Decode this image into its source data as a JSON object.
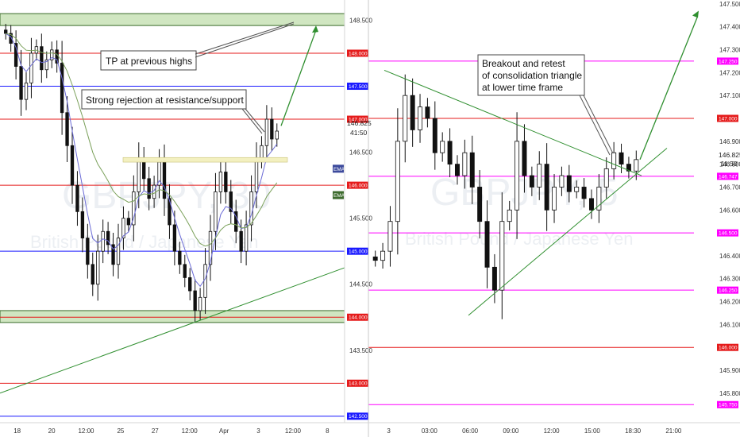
{
  "colors": {
    "red_line": "#e51b1b",
    "blue_line": "#1a1aff",
    "magenta_line": "#ff00ff",
    "green_zone": "#a9d18e",
    "green_trend": "#2f8f2f",
    "ema_fast": "#6b6bd6",
    "ema_slow": "#7aa05a"
  },
  "chart_data": [
    {
      "type": "candlestick",
      "symbol_watermark": "GBPJPY, 30",
      "description_watermark": "British Pound / Japanese Yen",
      "x_ticks": [
        "18",
        "20",
        "12:00",
        "25",
        "27",
        "12:00",
        "Apr",
        "3",
        "12:00",
        "8"
      ],
      "y_ticks": [
        "148.500",
        "148.000",
        "147.500",
        "147.000",
        "146.500",
        "146.000",
        "145.500",
        "145.000",
        "144.500",
        "144.000",
        "143.500",
        "143.000",
        "142.500"
      ],
      "ylim": [
        142.45,
        148.65
      ],
      "last_price": "146.825",
      "countdown": "41:50",
      "levels": [
        {
          "price": 148.0,
          "label": "148.000",
          "color": "red"
        },
        {
          "price": 147.5,
          "label": "147.500",
          "color": "blue"
        },
        {
          "price": 147.0,
          "label": "147.000",
          "color": "red"
        },
        {
          "price": 146.0,
          "label": "146.000",
          "color": "red"
        },
        {
          "price": 145.0,
          "label": "145.000",
          "color": "blue"
        },
        {
          "price": 144.0,
          "label": "144.000",
          "color": "red"
        },
        {
          "price": 143.0,
          "label": "143.000",
          "color": "red"
        },
        {
          "price": 142.5,
          "label": "142.500",
          "color": "blue"
        }
      ],
      "indicator_tags": [
        "EMA",
        "EMA"
      ],
      "zones": [
        {
          "from": 148.42,
          "to": 148.6
        },
        {
          "from": 143.92,
          "to": 144.1
        }
      ],
      "annotations": [
        "TP at previous highs",
        "Strong rejection at resistance/support"
      ],
      "series_close": [
        148.3,
        148.15,
        147.8,
        147.3,
        147.55,
        148.0,
        148.1,
        147.75,
        147.9,
        148.05,
        147.85,
        147.1,
        146.6,
        146.0,
        145.6,
        145.2,
        144.8,
        144.5,
        145.0,
        145.3,
        145.1,
        144.8,
        145.2,
        145.5,
        145.4,
        145.9,
        146.4,
        146.1,
        145.8,
        146.0,
        146.35,
        145.8,
        145.4,
        145.0,
        144.8,
        144.6,
        144.4,
        144.1,
        144.3,
        144.8,
        145.3,
        145.9,
        146.2,
        145.9,
        145.6,
        145.3,
        145.0,
        145.4,
        145.9,
        146.4,
        146.6,
        147.0,
        146.7,
        146.82
      ]
    },
    {
      "type": "candlestick",
      "symbol_watermark": "GBPJPY, 5",
      "description_watermark": "British Pound / Japanese Yen",
      "x_ticks": [
        "3",
        "03:00",
        "06:00",
        "09:00",
        "12:00",
        "15:00",
        "18:30",
        "21:00"
      ],
      "y_ticks": [
        "147.500",
        "147.400",
        "147.300",
        "147.200",
        "147.100",
        "147.000",
        "146.900",
        "146.800",
        "146.700",
        "146.600",
        "146.500",
        "146.400",
        "146.300",
        "146.200",
        "146.100",
        "146.000",
        "145.900",
        "145.800"
      ],
      "ylim": [
        145.685,
        147.51
      ],
      "last_price": "146.825",
      "countdown": "11:50",
      "levels": [
        {
          "price": 147.25,
          "label": "147.250",
          "color": "magenta"
        },
        {
          "price": 147.0,
          "label": "147.000",
          "color": "red"
        },
        {
          "price": 146.747,
          "label": "146.747",
          "color": "magenta"
        },
        {
          "price": 146.5,
          "label": "146.500",
          "color": "magenta"
        },
        {
          "price": 146.25,
          "label": "146.250",
          "color": "magenta"
        },
        {
          "price": 146.0,
          "label": "146.000",
          "color": "red"
        },
        {
          "price": 145.75,
          "label": "145.750",
          "color": "magenta"
        }
      ],
      "annotations": [
        "Breakout and retest",
        "of consolidation triangle",
        "at lower time frame"
      ],
      "series_close": [
        146.38,
        146.42,
        146.55,
        146.9,
        147.1,
        146.95,
        147.05,
        147.0,
        146.85,
        146.9,
        146.8,
        146.75,
        146.85,
        146.7,
        146.55,
        146.35,
        146.25,
        146.55,
        146.6,
        146.9,
        146.75,
        146.7,
        146.8,
        146.6,
        146.7,
        146.75,
        146.68,
        146.7,
        146.65,
        146.6,
        146.7,
        146.78,
        146.85,
        146.8,
        146.77,
        146.82
      ]
    }
  ]
}
